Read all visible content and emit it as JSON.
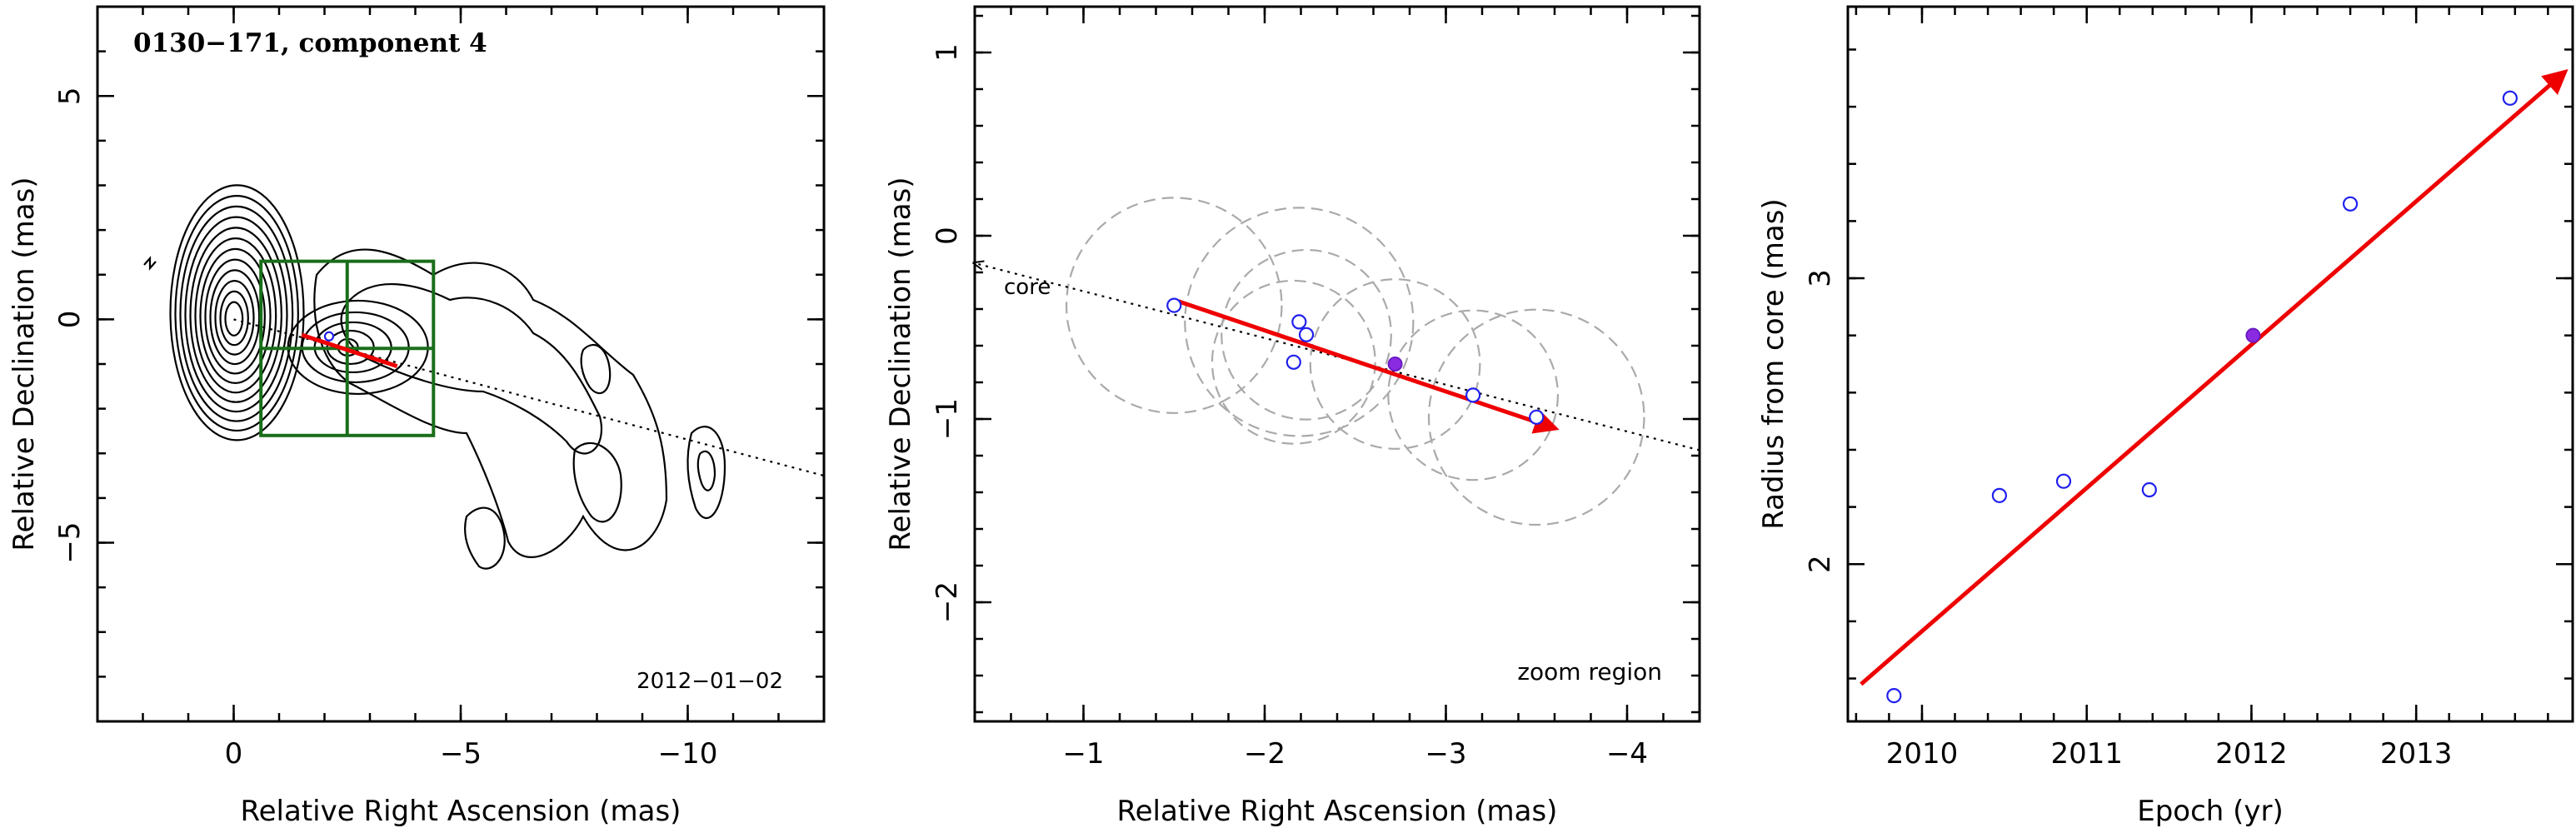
{
  "colors": {
    "arrow": "#ee0000",
    "open_marker": "#2020ee",
    "filled_marker": "#8a2be2",
    "circles": "#aaaaaa",
    "box": "#1a6e1a"
  },
  "chart_data": [
    {
      "type": "contour",
      "title": "0130−171, component 4",
      "epoch_label": "2012−01−02",
      "xlabel": "Relative Right Ascension (mas)",
      "ylabel": "Relative Declination (mas)",
      "xlim": [
        3,
        -13
      ],
      "ylim": [
        -9,
        7
      ],
      "xticks": [
        0,
        -5,
        -10
      ],
      "xtick_labels": [
        "0",
        "−5",
        "−10"
      ],
      "yticks": [
        5,
        0,
        -5
      ],
      "ytick_labels": [
        "5",
        "0",
        "−5"
      ],
      "contour_levels": 12,
      "core_position": [
        0,
        0
      ],
      "component_position": [
        -2.7,
        -0.7
      ],
      "motion_arrow": {
        "from": [
          -1.5,
          -0.35
        ],
        "to": [
          -3.6,
          -1.05
        ]
      },
      "trajectory_line": {
        "from": [
          0,
          0
        ],
        "to": [
          -13,
          -3.5
        ]
      },
      "zoom_region": {
        "x": [
          -0.6,
          -4.4
        ],
        "y": [
          -2.6,
          1.3
        ]
      }
    },
    {
      "type": "scatter",
      "title": "",
      "annotations": [
        "core",
        "zoom region"
      ],
      "xlabel": "Relative Right Ascension (mas)",
      "ylabel": "Relative Declination (mas)",
      "xlim": [
        -0.4,
        -4.4
      ],
      "ylim": [
        -2.65,
        1.25
      ],
      "xticks": [
        -1,
        -2,
        -3,
        -4
      ],
      "xtick_labels": [
        "−1",
        "−2",
        "−3",
        "−4"
      ],
      "yticks": [
        1,
        0,
        -1,
        -2
      ],
      "ytick_labels": [
        "1",
        "0",
        "−1",
        "−2"
      ],
      "points": [
        {
          "x": -1.5,
          "y": -0.38,
          "r": 0.66
        },
        {
          "x": -2.19,
          "y": -0.47,
          "r": 0.7
        },
        {
          "x": -2.23,
          "y": -0.54,
          "r": 0.52
        },
        {
          "x": -2.16,
          "y": -0.69,
          "r": 0.5
        },
        {
          "x": -3.15,
          "y": -0.87,
          "r": 0.52
        },
        {
          "x": -3.5,
          "y": -0.99,
          "r": 0.66
        }
      ],
      "highlight_point": {
        "x": -2.72,
        "y": -0.7,
        "r": 0.52
      },
      "motion_arrow": {
        "from": [
          -1.5,
          -0.35
        ],
        "to": [
          -3.6,
          -1.05
        ]
      },
      "core_direction_line": {
        "from": [
          -4.4,
          -1.17
        ],
        "to": [
          -0.4,
          -0.15
        ]
      }
    },
    {
      "type": "scatter",
      "title": "",
      "xlabel": "Epoch (yr)",
      "ylabel": "Radius from core (mas)",
      "xlim": [
        2009.55,
        2013.95
      ],
      "ylim": [
        1.45,
        3.95
      ],
      "xticks": [
        2010,
        2011,
        2012,
        2013
      ],
      "xtick_labels": [
        "2010",
        "2011",
        "2012",
        "2013"
      ],
      "yticks": [
        2,
        3
      ],
      "ytick_labels": [
        "2",
        "3"
      ],
      "points": [
        {
          "x": 2009.83,
          "y": 1.54
        },
        {
          "x": 2010.47,
          "y": 2.24
        },
        {
          "x": 2010.86,
          "y": 2.29
        },
        {
          "x": 2011.38,
          "y": 2.26
        },
        {
          "x": 2012.6,
          "y": 3.26
        },
        {
          "x": 2013.57,
          "y": 3.63
        }
      ],
      "highlight_point": {
        "x": 2012.01,
        "y": 2.8
      },
      "fit_arrow": {
        "from": [
          2009.63,
          1.58
        ],
        "to": [
          2013.9,
          3.72
        ]
      }
    }
  ]
}
